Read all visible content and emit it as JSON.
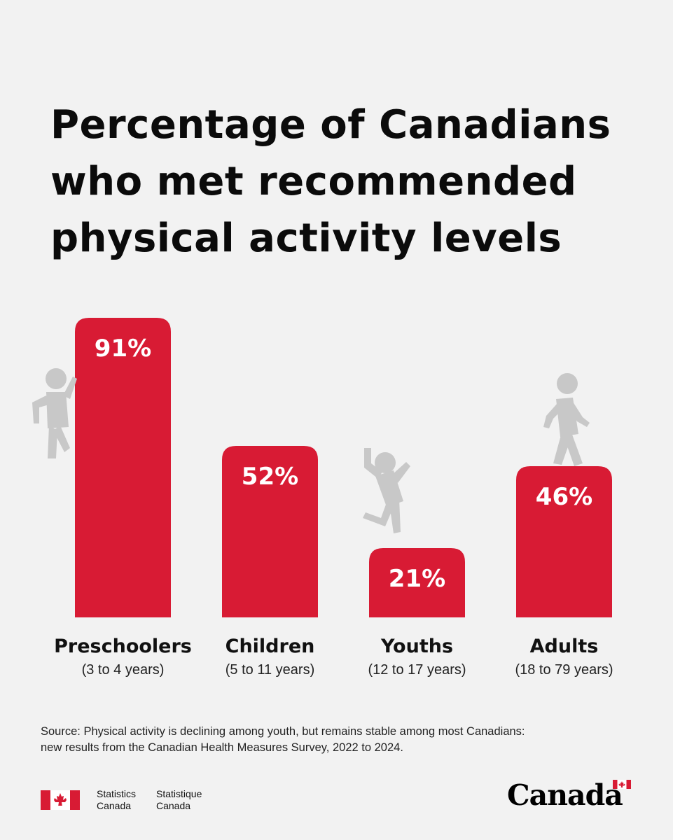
{
  "title_lines": [
    "Percentage of Canadians",
    "who met recommended",
    "physical activity levels"
  ],
  "chart_data": {
    "type": "bar",
    "title": "Percentage of Canadians who met recommended physical activity levels",
    "categories": [
      "Preschoolers",
      "Children",
      "Youths",
      "Adults"
    ],
    "subcategories": [
      "(3 to 4 years)",
      "(5 to 11 years)",
      "(12 to 17 years)",
      "(18 to 79 years)"
    ],
    "values": [
      91,
      52,
      21,
      46
    ],
    "value_labels": [
      "91%",
      "52%",
      "21%",
      "46%"
    ],
    "unit": "%",
    "ylim": [
      0,
      91
    ],
    "grid": false,
    "bar_color": "#d81b34",
    "icon_color": "#c8c8c8",
    "icons": [
      "climbing-person-icon",
      "running-person-icon",
      "jumping-person-icon",
      "walking-person-icon"
    ]
  },
  "source": "Source: Physical activity is declining among youth, but remains stable among most Canadians: new results from the Canadian Health Measures Survey, 2022 to 2024.",
  "footer": {
    "signature_en": [
      "Statistics",
      "Canada"
    ],
    "signature_fr": [
      "Statistique",
      "Canada"
    ],
    "wordmark": "Canada",
    "flag_color": "#d81b34"
  }
}
